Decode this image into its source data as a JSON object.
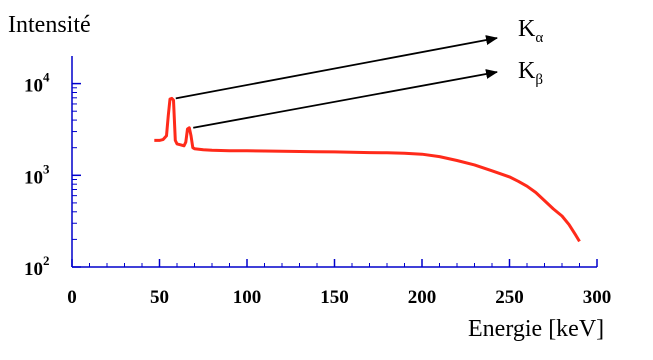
{
  "chart_data": {
    "type": "line",
    "title": "",
    "ylabel": "Intensité",
    "xlabel": "Energie [keV]",
    "yscale": "log",
    "xlim": [
      0,
      300
    ],
    "ylim": [
      100,
      20000
    ],
    "xticks": [
      0,
      50,
      100,
      150,
      200,
      250,
      300
    ],
    "xtick_labels": [
      "0",
      "50",
      "100",
      "150",
      "200",
      "250",
      "300"
    ],
    "yticks": [
      100,
      1000,
      10000
    ],
    "ytick_labels": [
      {
        "base": "10",
        "exp": "2"
      },
      {
        "base": "10",
        "exp": "3"
      },
      {
        "base": "10",
        "exp": "4"
      }
    ],
    "grid": false,
    "series": [
      {
        "color": "#ff2a1a",
        "x": [
          47,
          50,
          52,
          54,
          55,
          56,
          57,
          58,
          59,
          60,
          62,
          64,
          65,
          66,
          67,
          68,
          69,
          70,
          75,
          80,
          90,
          100,
          110,
          120,
          130,
          140,
          150,
          160,
          170,
          180,
          190,
          200,
          210,
          220,
          230,
          240,
          250,
          255,
          260,
          265,
          270,
          275,
          280,
          284,
          288,
          290
        ],
        "y": [
          2400,
          2400,
          2450,
          2700,
          4500,
          6800,
          6900,
          6600,
          2400,
          2200,
          2150,
          2100,
          2300,
          3200,
          3300,
          2700,
          2000,
          1950,
          1900,
          1880,
          1850,
          1850,
          1840,
          1830,
          1820,
          1810,
          1800,
          1780,
          1770,
          1760,
          1740,
          1700,
          1600,
          1450,
          1300,
          1120,
          960,
          860,
          760,
          650,
          530,
          430,
          360,
          290,
          220,
          190
        ]
      }
    ],
    "annotations": [
      {
        "base": "K",
        "sub": "α",
        "x": 57,
        "y": 6900
      },
      {
        "base": "K",
        "sub": "β",
        "x": 67,
        "y": 3300
      }
    ]
  }
}
